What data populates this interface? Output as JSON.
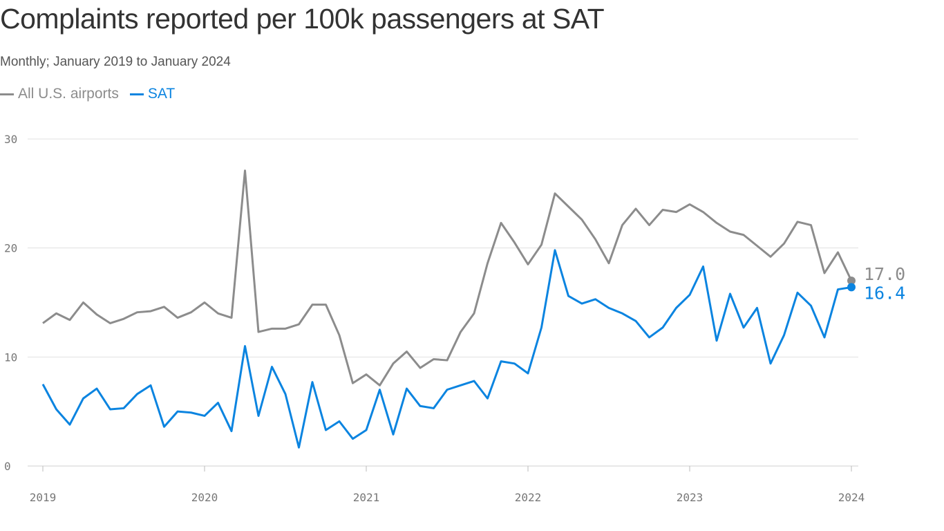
{
  "chart_data": {
    "type": "line",
    "title": "Complaints reported per 100k passengers at SAT",
    "subtitle": "Monthly; January 2019 to January 2024",
    "xlabel": "",
    "ylabel": "",
    "x_start": "2019-01",
    "x_end": "2024-01",
    "x_ticks": [
      "2019",
      "2020",
      "2021",
      "2022",
      "2023",
      "2024"
    ],
    "y_ticks": [
      0,
      10,
      20,
      30
    ],
    "ylim": [
      0,
      30
    ],
    "grid": true,
    "legend": "top-left",
    "series": [
      {
        "name": "All U.S. airports",
        "color": "#8c8c8c",
        "end_label": "17.0",
        "values": [
          13.1,
          14.0,
          13.4,
          15.0,
          13.9,
          13.1,
          13.5,
          14.1,
          14.2,
          14.6,
          13.6,
          14.1,
          15.0,
          14.0,
          13.6,
          27.1,
          12.3,
          12.6,
          12.6,
          13.0,
          14.8,
          14.8,
          12.0,
          7.6,
          8.4,
          7.4,
          9.4,
          10.5,
          9.0,
          9.8,
          9.7,
          12.3,
          14.0,
          18.6,
          22.3,
          20.5,
          18.5,
          20.3,
          25.0,
          23.8,
          22.6,
          20.8,
          18.6,
          22.1,
          23.6,
          22.1,
          23.5,
          23.3,
          24.0,
          23.3,
          22.3,
          21.5,
          21.2,
          20.2,
          19.2,
          20.4,
          22.4,
          22.1,
          17.7,
          19.6,
          17.0
        ]
      },
      {
        "name": "SAT",
        "color": "#0b84e0",
        "end_label": "16.4",
        "values": [
          7.5,
          5.2,
          3.8,
          6.2,
          7.1,
          5.2,
          5.3,
          6.6,
          7.4,
          3.6,
          5.0,
          4.9,
          4.6,
          5.8,
          3.2,
          11.0,
          4.6,
          9.1,
          6.6,
          1.7,
          7.7,
          3.3,
          4.1,
          2.5,
          3.3,
          7.0,
          2.9,
          7.1,
          5.5,
          5.3,
          7.0,
          7.4,
          7.8,
          6.2,
          9.6,
          9.4,
          8.5,
          12.7,
          19.8,
          15.6,
          14.9,
          15.3,
          14.5,
          14.0,
          13.3,
          11.8,
          12.7,
          14.5,
          15.7,
          18.3,
          11.5,
          15.8,
          12.7,
          14.5,
          9.4,
          12.0,
          15.9,
          14.7,
          11.8,
          16.2,
          16.4
        ]
      }
    ]
  }
}
